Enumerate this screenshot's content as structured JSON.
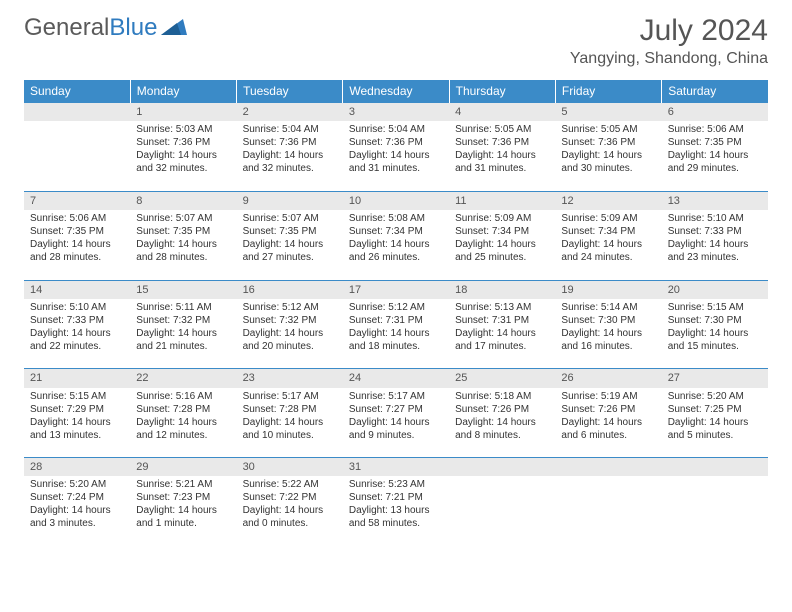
{
  "brand": {
    "part1": "General",
    "part2": "Blue"
  },
  "title": "July 2024",
  "location": "Yangying, Shandong, China",
  "colors": {
    "header_bg": "#3b8bc8",
    "header_text": "#ffffff",
    "daynum_bg": "#e9e9e9",
    "rule": "#3b8bc8",
    "text": "#333333",
    "brand_gray": "#5a5a5a",
    "brand_blue": "#2f7bbf"
  },
  "day_headers": [
    "Sunday",
    "Monday",
    "Tuesday",
    "Wednesday",
    "Thursday",
    "Friday",
    "Saturday"
  ],
  "weeks": [
    [
      {
        "n": "",
        "lines": []
      },
      {
        "n": "1",
        "lines": [
          "Sunrise: 5:03 AM",
          "Sunset: 7:36 PM",
          "Daylight: 14 hours",
          "and 32 minutes."
        ]
      },
      {
        "n": "2",
        "lines": [
          "Sunrise: 5:04 AM",
          "Sunset: 7:36 PM",
          "Daylight: 14 hours",
          "and 32 minutes."
        ]
      },
      {
        "n": "3",
        "lines": [
          "Sunrise: 5:04 AM",
          "Sunset: 7:36 PM",
          "Daylight: 14 hours",
          "and 31 minutes."
        ]
      },
      {
        "n": "4",
        "lines": [
          "Sunrise: 5:05 AM",
          "Sunset: 7:36 PM",
          "Daylight: 14 hours",
          "and 31 minutes."
        ]
      },
      {
        "n": "5",
        "lines": [
          "Sunrise: 5:05 AM",
          "Sunset: 7:36 PM",
          "Daylight: 14 hours",
          "and 30 minutes."
        ]
      },
      {
        "n": "6",
        "lines": [
          "Sunrise: 5:06 AM",
          "Sunset: 7:35 PM",
          "Daylight: 14 hours",
          "and 29 minutes."
        ]
      }
    ],
    [
      {
        "n": "7",
        "lines": [
          "Sunrise: 5:06 AM",
          "Sunset: 7:35 PM",
          "Daylight: 14 hours",
          "and 28 minutes."
        ]
      },
      {
        "n": "8",
        "lines": [
          "Sunrise: 5:07 AM",
          "Sunset: 7:35 PM",
          "Daylight: 14 hours",
          "and 28 minutes."
        ]
      },
      {
        "n": "9",
        "lines": [
          "Sunrise: 5:07 AM",
          "Sunset: 7:35 PM",
          "Daylight: 14 hours",
          "and 27 minutes."
        ]
      },
      {
        "n": "10",
        "lines": [
          "Sunrise: 5:08 AM",
          "Sunset: 7:34 PM",
          "Daylight: 14 hours",
          "and 26 minutes."
        ]
      },
      {
        "n": "11",
        "lines": [
          "Sunrise: 5:09 AM",
          "Sunset: 7:34 PM",
          "Daylight: 14 hours",
          "and 25 minutes."
        ]
      },
      {
        "n": "12",
        "lines": [
          "Sunrise: 5:09 AM",
          "Sunset: 7:34 PM",
          "Daylight: 14 hours",
          "and 24 minutes."
        ]
      },
      {
        "n": "13",
        "lines": [
          "Sunrise: 5:10 AM",
          "Sunset: 7:33 PM",
          "Daylight: 14 hours",
          "and 23 minutes."
        ]
      }
    ],
    [
      {
        "n": "14",
        "lines": [
          "Sunrise: 5:10 AM",
          "Sunset: 7:33 PM",
          "Daylight: 14 hours",
          "and 22 minutes."
        ]
      },
      {
        "n": "15",
        "lines": [
          "Sunrise: 5:11 AM",
          "Sunset: 7:32 PM",
          "Daylight: 14 hours",
          "and 21 minutes."
        ]
      },
      {
        "n": "16",
        "lines": [
          "Sunrise: 5:12 AM",
          "Sunset: 7:32 PM",
          "Daylight: 14 hours",
          "and 20 minutes."
        ]
      },
      {
        "n": "17",
        "lines": [
          "Sunrise: 5:12 AM",
          "Sunset: 7:31 PM",
          "Daylight: 14 hours",
          "and 18 minutes."
        ]
      },
      {
        "n": "18",
        "lines": [
          "Sunrise: 5:13 AM",
          "Sunset: 7:31 PM",
          "Daylight: 14 hours",
          "and 17 minutes."
        ]
      },
      {
        "n": "19",
        "lines": [
          "Sunrise: 5:14 AM",
          "Sunset: 7:30 PM",
          "Daylight: 14 hours",
          "and 16 minutes."
        ]
      },
      {
        "n": "20",
        "lines": [
          "Sunrise: 5:15 AM",
          "Sunset: 7:30 PM",
          "Daylight: 14 hours",
          "and 15 minutes."
        ]
      }
    ],
    [
      {
        "n": "21",
        "lines": [
          "Sunrise: 5:15 AM",
          "Sunset: 7:29 PM",
          "Daylight: 14 hours",
          "and 13 minutes."
        ]
      },
      {
        "n": "22",
        "lines": [
          "Sunrise: 5:16 AM",
          "Sunset: 7:28 PM",
          "Daylight: 14 hours",
          "and 12 minutes."
        ]
      },
      {
        "n": "23",
        "lines": [
          "Sunrise: 5:17 AM",
          "Sunset: 7:28 PM",
          "Daylight: 14 hours",
          "and 10 minutes."
        ]
      },
      {
        "n": "24",
        "lines": [
          "Sunrise: 5:17 AM",
          "Sunset: 7:27 PM",
          "Daylight: 14 hours",
          "and 9 minutes."
        ]
      },
      {
        "n": "25",
        "lines": [
          "Sunrise: 5:18 AM",
          "Sunset: 7:26 PM",
          "Daylight: 14 hours",
          "and 8 minutes."
        ]
      },
      {
        "n": "26",
        "lines": [
          "Sunrise: 5:19 AM",
          "Sunset: 7:26 PM",
          "Daylight: 14 hours",
          "and 6 minutes."
        ]
      },
      {
        "n": "27",
        "lines": [
          "Sunrise: 5:20 AM",
          "Sunset: 7:25 PM",
          "Daylight: 14 hours",
          "and 5 minutes."
        ]
      }
    ],
    [
      {
        "n": "28",
        "lines": [
          "Sunrise: 5:20 AM",
          "Sunset: 7:24 PM",
          "Daylight: 14 hours",
          "and 3 minutes."
        ]
      },
      {
        "n": "29",
        "lines": [
          "Sunrise: 5:21 AM",
          "Sunset: 7:23 PM",
          "Daylight: 14 hours",
          "and 1 minute."
        ]
      },
      {
        "n": "30",
        "lines": [
          "Sunrise: 5:22 AM",
          "Sunset: 7:22 PM",
          "Daylight: 14 hours",
          "and 0 minutes."
        ]
      },
      {
        "n": "31",
        "lines": [
          "Sunrise: 5:23 AM",
          "Sunset: 7:21 PM",
          "Daylight: 13 hours",
          "and 58 minutes."
        ]
      },
      {
        "n": "",
        "lines": []
      },
      {
        "n": "",
        "lines": []
      },
      {
        "n": "",
        "lines": []
      }
    ]
  ]
}
